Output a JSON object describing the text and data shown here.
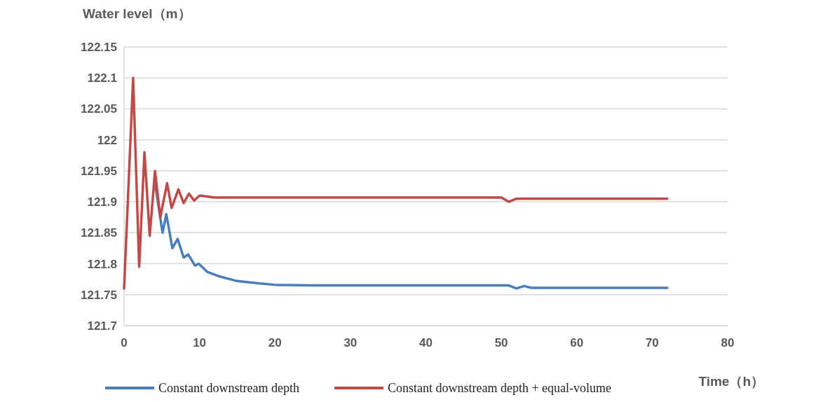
{
  "chart_data": {
    "type": "line",
    "xlabel": "Time（h）",
    "ylabel": "Water level（m）",
    "xlim": [
      0,
      80
    ],
    "xticks": [
      0,
      10,
      20,
      30,
      40,
      50,
      60,
      70,
      80
    ],
    "ylim": [
      121.7,
      122.15
    ],
    "yticks": [
      121.7,
      121.75,
      121.8,
      121.85,
      121.9,
      121.95,
      122,
      122.05,
      122.1,
      122.15
    ],
    "grid": "y",
    "legend": "bottom",
    "marker": "none",
    "line_style": "solid",
    "series": [
      {
        "name": "Constant downstream depth",
        "color": "#4a7ebb",
        "x": [
          4.1,
          5.1,
          5.6,
          6.4,
          7.1,
          7.9,
          8.5,
          9.4,
          9.9,
          11,
          12.5,
          15,
          18,
          20,
          25,
          51,
          52,
          53,
          54,
          72
        ],
        "values": [
          121.93,
          121.85,
          121.88,
          121.825,
          121.84,
          121.81,
          121.815,
          121.797,
          121.8,
          121.787,
          121.78,
          121.772,
          121.768,
          121.766,
          121.765,
          121.765,
          121.76,
          121.764,
          121.761,
          121.761
        ]
      },
      {
        "name": "Constant downstream depth + equal-volume",
        "color": "#be4b48",
        "x": [
          0,
          1.2,
          2.0,
          2.7,
          3.4,
          4.1,
          4.8,
          5.7,
          6.3,
          7.2,
          7.9,
          8.6,
          9.3,
          10,
          12,
          50,
          51,
          52,
          72
        ],
        "values": [
          121.76,
          122.1,
          121.795,
          121.98,
          121.845,
          121.95,
          121.875,
          121.93,
          121.89,
          121.92,
          121.898,
          121.913,
          121.902,
          121.91,
          121.907,
          121.907,
          121.9,
          121.905,
          121.905
        ]
      }
    ]
  }
}
